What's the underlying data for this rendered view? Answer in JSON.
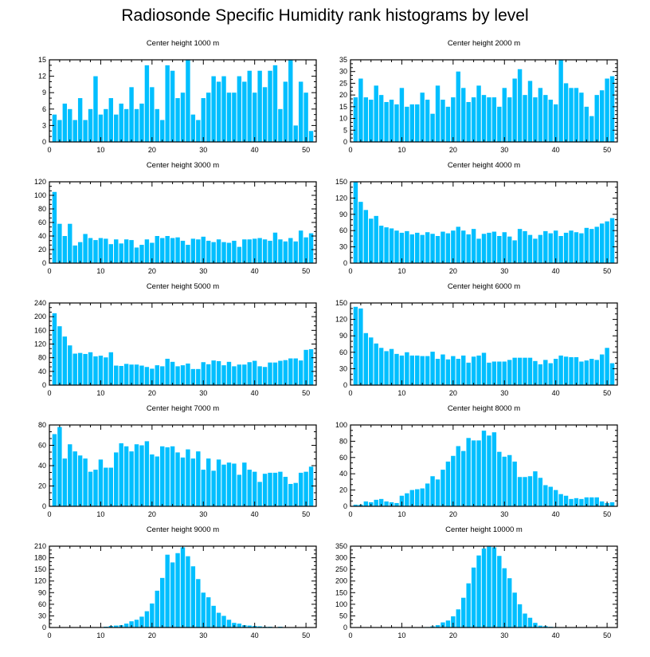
{
  "title": "Radiosonde Specific Humidity rank histograms by level",
  "colors": {
    "bar": "#00bfff",
    "axis": "#000000"
  },
  "chart_data": [
    {
      "type": "bar",
      "title": "Center height 1000 m",
      "xlim": [
        0,
        52
      ],
      "ylim": [
        0,
        15
      ],
      "yticks": [
        0,
        3,
        6,
        9,
        12,
        15
      ],
      "xticks": [
        0,
        10,
        20,
        30,
        40,
        50
      ],
      "values": [
        5,
        4,
        7,
        6,
        4,
        8,
        4,
        6,
        12,
        5,
        6,
        8,
        5,
        7,
        6,
        10,
        6,
        7,
        14,
        10,
        6,
        4,
        14,
        13,
        8,
        9,
        15,
        5,
        4,
        8,
        9,
        12,
        11,
        12,
        9,
        9,
        12,
        11,
        13,
        9,
        13,
        10,
        13,
        14,
        6,
        11,
        15,
        3,
        11,
        9,
        2
      ]
    },
    {
      "type": "bar",
      "title": "Center height 2000 m",
      "xlim": [
        0,
        52
      ],
      "ylim": [
        0,
        35
      ],
      "yticks": [
        0,
        5,
        10,
        15,
        20,
        25,
        30,
        35
      ],
      "xticks": [
        0,
        10,
        20,
        30,
        40,
        50
      ],
      "values": [
        19,
        27,
        19,
        18,
        24,
        20,
        17,
        18,
        16,
        23,
        15,
        16,
        16,
        21,
        18,
        12,
        24,
        18,
        15,
        19,
        30,
        23,
        17,
        19,
        24,
        20,
        19,
        19,
        15,
        23,
        19,
        27,
        31,
        20,
        26,
        19,
        23,
        20,
        18,
        16,
        35,
        25,
        23,
        23,
        21,
        15,
        11,
        20,
        22,
        27,
        28
      ]
    },
    {
      "type": "bar",
      "title": "Center height 3000 m",
      "xlim": [
        0,
        52
      ],
      "ylim": [
        0,
        120
      ],
      "yticks": [
        0,
        20,
        40,
        60,
        80,
        100,
        120
      ],
      "xticks": [
        0,
        10,
        20,
        30,
        40,
        50
      ],
      "values": [
        105,
        58,
        40,
        58,
        26,
        31,
        43,
        37,
        34,
        37,
        36,
        28,
        35,
        29,
        35,
        34,
        23,
        27,
        35,
        30,
        40,
        37,
        40,
        37,
        38,
        33,
        27,
        36,
        35,
        39,
        33,
        31,
        35,
        31,
        30,
        33,
        24,
        35,
        35,
        36,
        37,
        35,
        33,
        45,
        35,
        32,
        37,
        32,
        48,
        38,
        44
      ]
    },
    {
      "type": "bar",
      "title": "Center height 4000 m",
      "xlim": [
        0,
        52
      ],
      "ylim": [
        0,
        150
      ],
      "yticks": [
        0,
        30,
        60,
        90,
        120,
        150
      ],
      "xticks": [
        0,
        10,
        20,
        30,
        40,
        50
      ],
      "values": [
        150,
        113,
        98,
        82,
        87,
        69,
        66,
        64,
        60,
        56,
        59,
        53,
        56,
        52,
        57,
        54,
        50,
        58,
        55,
        60,
        67,
        60,
        53,
        63,
        45,
        54,
        56,
        58,
        50,
        57,
        49,
        42,
        63,
        59,
        52,
        45,
        52,
        59,
        55,
        60,
        50,
        56,
        60,
        57,
        55,
        65,
        63,
        67,
        73,
        77,
        83
      ]
    },
    {
      "type": "bar",
      "title": "Center height 5000 m",
      "xlim": [
        0,
        52
      ],
      "ylim": [
        0,
        240
      ],
      "yticks": [
        0,
        40,
        80,
        120,
        160,
        200,
        240
      ],
      "xticks": [
        0,
        10,
        20,
        30,
        40,
        50
      ],
      "values": [
        210,
        172,
        142,
        116,
        92,
        94,
        91,
        96,
        84,
        86,
        81,
        96,
        57,
        56,
        62,
        60,
        60,
        57,
        53,
        48,
        58,
        55,
        77,
        68,
        55,
        58,
        63,
        47,
        47,
        67,
        61,
        72,
        70,
        58,
        68,
        55,
        60,
        60,
        67,
        71,
        55,
        53,
        66,
        66,
        71,
        73,
        78,
        78,
        72,
        103,
        105
      ]
    },
    {
      "type": "bar",
      "title": "Center height 6000 m",
      "xlim": [
        0,
        52
      ],
      "ylim": [
        0,
        150
      ],
      "yticks": [
        0,
        30,
        60,
        90,
        120,
        150
      ],
      "xticks": [
        0,
        10,
        20,
        30,
        40,
        50
      ],
      "values": [
        143,
        140,
        95,
        87,
        76,
        68,
        62,
        66,
        57,
        54,
        60,
        54,
        54,
        53,
        53,
        61,
        48,
        56,
        47,
        53,
        48,
        54,
        41,
        52,
        54,
        59,
        41,
        43,
        43,
        43,
        46,
        50,
        50,
        50,
        50,
        44,
        38,
        46,
        40,
        48,
        54,
        52,
        51,
        51,
        43,
        45,
        48,
        46,
        56,
        68,
        40
      ]
    },
    {
      "type": "bar",
      "title": "Center height 7000 m",
      "xlim": [
        0,
        52
      ],
      "ylim": [
        0,
        80
      ],
      "yticks": [
        0,
        20,
        40,
        60,
        80
      ],
      "xticks": [
        0,
        10,
        20,
        30,
        40,
        50
      ],
      "values": [
        71,
        78,
        47,
        61,
        54,
        50,
        47,
        34,
        36,
        46,
        38,
        38,
        53,
        62,
        59,
        54,
        61,
        60,
        64,
        51,
        49,
        59,
        58,
        59,
        53,
        48,
        56,
        47,
        54,
        36,
        47,
        35,
        46,
        41,
        43,
        42,
        31,
        43,
        36,
        34,
        24,
        32,
        33,
        33,
        34,
        29,
        22,
        23,
        33,
        34,
        39
      ]
    },
    {
      "type": "bar",
      "title": "Center height 8000 m",
      "xlim": [
        0,
        52
      ],
      "ylim": [
        0,
        100
      ],
      "yticks": [
        0,
        20,
        40,
        60,
        80,
        100
      ],
      "xticks": [
        0,
        10,
        20,
        30,
        40,
        50
      ],
      "values": [
        2,
        2,
        6,
        5,
        8,
        9,
        6,
        5,
        4,
        13,
        16,
        20,
        21,
        22,
        28,
        37,
        33,
        45,
        55,
        62,
        74,
        68,
        84,
        81,
        81,
        93,
        87,
        91,
        67,
        61,
        63,
        55,
        36,
        36,
        37,
        43,
        35,
        26,
        24,
        20,
        15,
        13,
        9,
        10,
        9,
        11,
        11,
        11,
        6,
        4,
        5
      ]
    },
    {
      "type": "bar",
      "title": "Center height 9000 m",
      "xlim": [
        0,
        52
      ],
      "ylim": [
        0,
        210
      ],
      "yticks": [
        0,
        30,
        60,
        90,
        120,
        150,
        180,
        210
      ],
      "xticks": [
        0,
        10,
        20,
        30,
        40,
        50
      ],
      "values": [
        0,
        0,
        0,
        0,
        0,
        0,
        0,
        0,
        1,
        1,
        2,
        4,
        5,
        6,
        10,
        16,
        20,
        28,
        42,
        62,
        95,
        128,
        188,
        168,
        192,
        207,
        184,
        158,
        125,
        90,
        78,
        56,
        38,
        30,
        20,
        12,
        10,
        6,
        5,
        4,
        3,
        2,
        2,
        1,
        2,
        1,
        1,
        1,
        1,
        0,
        0
      ]
    },
    {
      "type": "bar",
      "title": "Center height 10000 m",
      "xlim": [
        0,
        52
      ],
      "ylim": [
        0,
        350
      ],
      "yticks": [
        0,
        50,
        100,
        150,
        200,
        250,
        300,
        350
      ],
      "xticks": [
        0,
        10,
        20,
        30,
        40,
        50
      ],
      "values": [
        0,
        0,
        0,
        0,
        0,
        0,
        0,
        0,
        0,
        0,
        0,
        0,
        0,
        1,
        2,
        5,
        10,
        22,
        30,
        48,
        78,
        128,
        190,
        258,
        310,
        340,
        348,
        345,
        308,
        255,
        212,
        150,
        100,
        60,
        42,
        20,
        8,
        6,
        3,
        2,
        1,
        1,
        1,
        0,
        0,
        0,
        0,
        0,
        0,
        0,
        0
      ]
    }
  ]
}
